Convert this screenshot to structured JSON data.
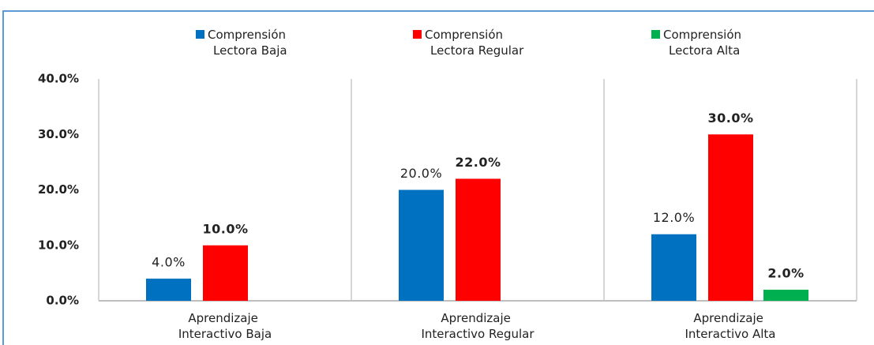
{
  "chart_data": {
    "type": "bar",
    "categories": [
      "Aprendizaje Interactivo Baja",
      "Aprendizaje Interactivo Regular",
      "Aprendizaje Interactivo Alta"
    ],
    "series": [
      {
        "name": "Comprensión Lectora Baja",
        "color": "#0070c0",
        "values": [
          4,
          20,
          12
        ],
        "value_labels": [
          "4.0%",
          "20.0%",
          "12.0%"
        ]
      },
      {
        "name": "Comprensión Lectora Regular",
        "color": "#ff0000",
        "values": [
          10,
          22,
          30
        ],
        "value_labels": [
          "10.0%",
          "22.0%",
          "30.0%"
        ]
      },
      {
        "name": "Comprensión Lectora Alta",
        "color": "#00b050",
        "values": [
          null,
          null,
          2
        ],
        "value_labels": [
          null,
          null,
          "2.0%"
        ]
      }
    ],
    "ylim": [
      0,
      40
    ],
    "yticks": [
      {
        "value": 0,
        "label": "0.0%"
      },
      {
        "value": 10,
        "label": "10.0%"
      },
      {
        "value": 20,
        "label": "20.0%"
      },
      {
        "value": 30,
        "label": "30.0%"
      },
      {
        "value": 40,
        "label": "40.0%"
      }
    ],
    "grid": false,
    "legend": "top"
  }
}
